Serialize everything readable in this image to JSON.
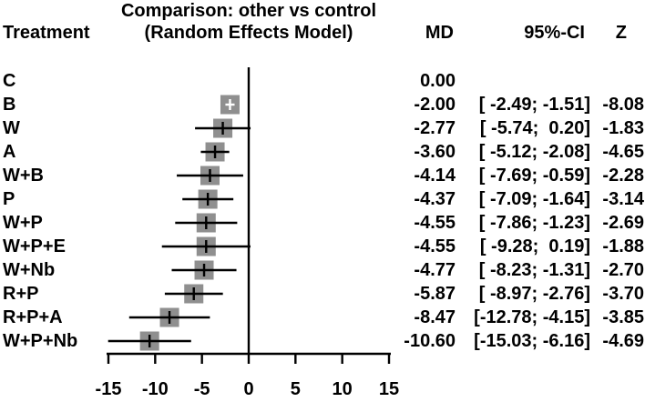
{
  "header": {
    "treatment_label": "Treatment",
    "title_line1": "Comparison: other vs control",
    "title_line2": "(Random Effects Model)",
    "col_md": "MD",
    "col_ci": "95%-CI",
    "col_z": "Z"
  },
  "chart_data": {
    "type": "forest",
    "title": "Comparison: other vs control (Random Effects Model)",
    "effect_measure": "MD",
    "axis": {
      "ticks": [
        -15,
        -10,
        -5,
        0,
        5,
        10,
        15
      ],
      "xlim": [
        -15,
        15
      ],
      "zero_line": 0
    },
    "legend_position": "none",
    "grid": false,
    "colors": {
      "square": "#8f8f8f",
      "line": "#000000",
      "cross": "#ffffff",
      "text": "#000000"
    },
    "rows": [
      {
        "treatment": "C",
        "md": 0.0,
        "lo": null,
        "hi": null,
        "md_text": "0.00",
        "ci_text": "",
        "z_text": ""
      },
      {
        "treatment": "B",
        "md": -2.0,
        "lo": -2.49,
        "hi": -1.51,
        "md_text": "-2.00",
        "ci_text": "[ -2.49; -1.51]",
        "z_text": "-8.08",
        "marker": "white-cross"
      },
      {
        "treatment": "W",
        "md": -2.77,
        "lo": -5.74,
        "hi": 0.2,
        "md_text": "-2.77",
        "ci_text": "[ -5.74;  0.20]",
        "z_text": "-1.83"
      },
      {
        "treatment": "A",
        "md": -3.6,
        "lo": -5.12,
        "hi": -2.08,
        "md_text": "-3.60",
        "ci_text": "[ -5.12; -2.08]",
        "z_text": "-4.65"
      },
      {
        "treatment": "W+B",
        "md": -4.14,
        "lo": -7.69,
        "hi": -0.59,
        "md_text": "-4.14",
        "ci_text": "[ -7.69; -0.59]",
        "z_text": "-2.28"
      },
      {
        "treatment": "P",
        "md": -4.37,
        "lo": -7.09,
        "hi": -1.64,
        "md_text": "-4.37",
        "ci_text": "[ -7.09; -1.64]",
        "z_text": "-3.14"
      },
      {
        "treatment": "W+P",
        "md": -4.55,
        "lo": -7.86,
        "hi": -1.23,
        "md_text": "-4.55",
        "ci_text": "[ -7.86; -1.23]",
        "z_text": "-2.69"
      },
      {
        "treatment": "W+P+E",
        "md": -4.55,
        "lo": -9.28,
        "hi": 0.19,
        "md_text": "-4.55",
        "ci_text": "[ -9.28;  0.19]",
        "z_text": "-1.88"
      },
      {
        "treatment": "W+Nb",
        "md": -4.77,
        "lo": -8.23,
        "hi": -1.31,
        "md_text": "-4.77",
        "ci_text": "[ -8.23; -1.31]",
        "z_text": "-2.70"
      },
      {
        "treatment": "R+P",
        "md": -5.87,
        "lo": -8.97,
        "hi": -2.76,
        "md_text": "-5.87",
        "ci_text": "[ -8.97; -2.76]",
        "z_text": "-3.70"
      },
      {
        "treatment": "R+P+A",
        "md": -8.47,
        "lo": -12.78,
        "hi": -4.15,
        "md_text": "-8.47",
        "ci_text": "[-12.78; -4.15]",
        "z_text": "-3.85"
      },
      {
        "treatment": "W+P+Nb",
        "md": -10.6,
        "lo": -15.03,
        "hi": -6.16,
        "md_text": "-10.60",
        "ci_text": "[-15.03; -6.16]",
        "z_text": "-4.69"
      }
    ]
  }
}
